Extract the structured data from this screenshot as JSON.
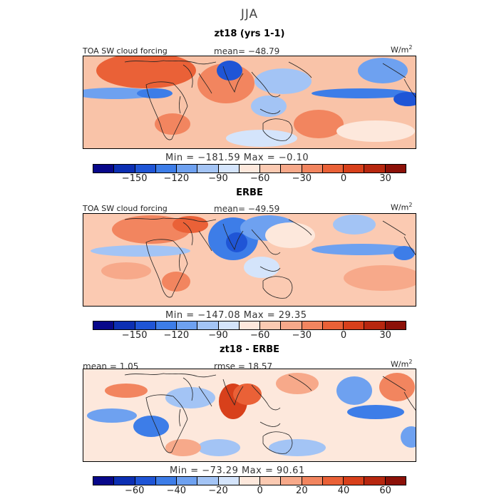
{
  "season": "JJA",
  "panels": [
    {
      "title": "zt18 (yrs 1-1)",
      "label_left": "TOA SW cloud forcing",
      "stat_center": "mean=  −48.79",
      "units": "W/m",
      "units_exp": "2",
      "min_max": "Min = −181.59 Max =  −0.10",
      "colorbar": {
        "colors": [
          "#08088a",
          "#0c2fb3",
          "#1f55d6",
          "#3d7de8",
          "#6ea1f0",
          "#a3c4f5",
          "#d4e4fb",
          "#fde8dc",
          "#fbcab2",
          "#f7a98a",
          "#f2855f",
          "#ea6137",
          "#d8401b",
          "#b7270f",
          "#8c1108"
        ],
        "ticks": [
          "−150",
          "−120",
          "−90",
          "−60",
          "−30",
          "0",
          "30"
        ]
      },
      "map_theme": "model"
    },
    {
      "title": "ERBE",
      "label_left": "TOA SW cloud forcing",
      "stat_center": "mean=  −49.59",
      "units": "W/m",
      "units_exp": "2",
      "min_max": "Min = −147.08 Max =  29.35",
      "colorbar": {
        "colors": [
          "#08088a",
          "#0c2fb3",
          "#1f55d6",
          "#3d7de8",
          "#6ea1f0",
          "#a3c4f5",
          "#d4e4fb",
          "#fde8dc",
          "#fbcab2",
          "#f7a98a",
          "#f2855f",
          "#ea6137",
          "#d8401b",
          "#b7270f",
          "#8c1108"
        ],
        "ticks": [
          "−150",
          "−120",
          "−90",
          "−60",
          "−30",
          "0",
          "30"
        ]
      },
      "map_theme": "obs"
    },
    {
      "title": "zt18 - ERBE",
      "label_left": "mean =   1.05",
      "stat_center": "rmse =  18.57",
      "units": "W/m",
      "units_exp": "2",
      "min_max": "Min = −73.29 Max =  90.61",
      "colorbar": {
        "colors": [
          "#08088a",
          "#0c2fb3",
          "#1f55d6",
          "#3d7de8",
          "#6ea1f0",
          "#a3c4f5",
          "#d4e4fb",
          "#fde8dc",
          "#fbcab2",
          "#f7a98a",
          "#f2855f",
          "#ea6137",
          "#d8401b",
          "#b7270f",
          "#8c1108"
        ],
        "ticks": [
          "−60",
          "−40",
          "−20",
          "0",
          "20",
          "40",
          "60"
        ]
      },
      "map_theme": "diff"
    }
  ]
}
